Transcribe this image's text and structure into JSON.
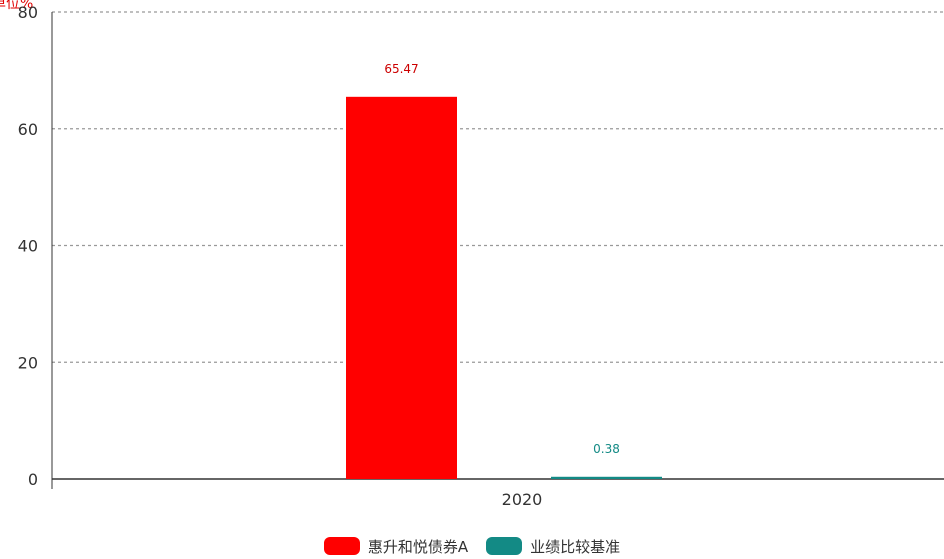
{
  "chart_data": {
    "type": "bar",
    "unit_label": "单位%",
    "categories": [
      "2020"
    ],
    "series": [
      {
        "name": "惠升和悦债券A",
        "values": [
          65.47
        ],
        "color": "#ff0000",
        "label_color": "#cc0000"
      },
      {
        "name": "业绩比较基准",
        "values": [
          0.38
        ],
        "color": "#138a85",
        "label_color": "#138a85"
      }
    ],
    "data_labels": [
      "65.47",
      "0.38"
    ],
    "yticks": [
      "0",
      "20",
      "40",
      "60",
      "80"
    ],
    "ylim": [
      0,
      80
    ],
    "grid": true,
    "legend_position": "bottom-center"
  }
}
